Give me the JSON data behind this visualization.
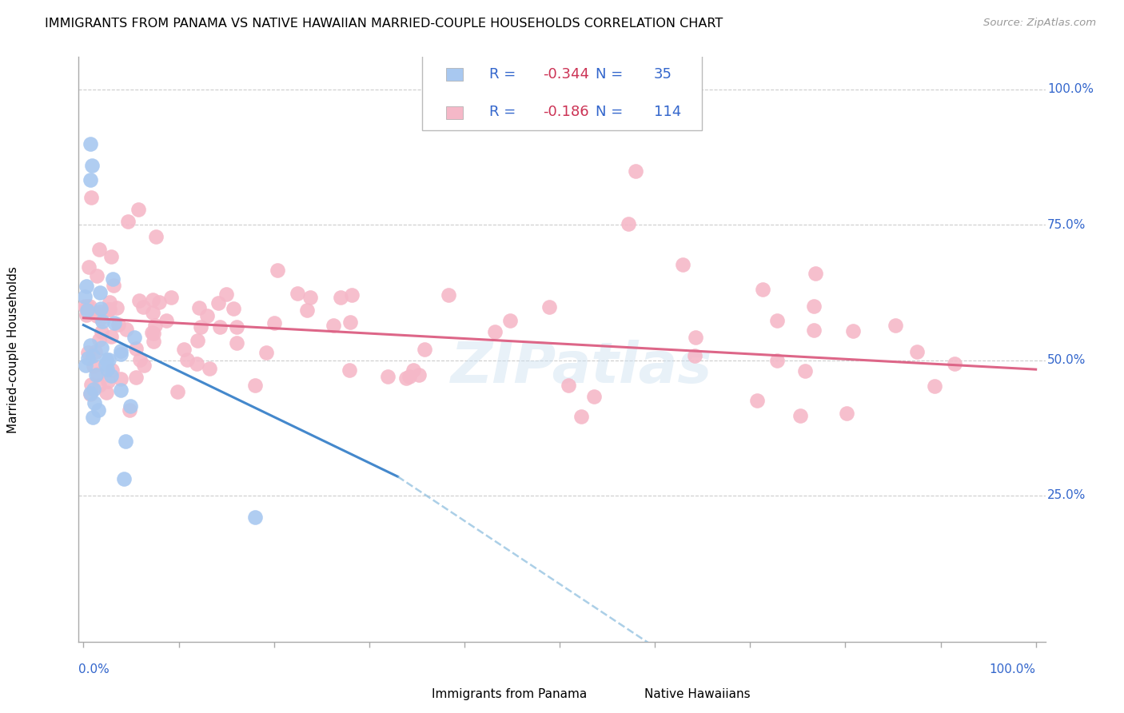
{
  "title": "IMMIGRANTS FROM PANAMA VS NATIVE HAWAIIAN MARRIED-COUPLE HOUSEHOLDS CORRELATION CHART",
  "source": "Source: ZipAtlas.com",
  "ylabel": "Married-couple Households",
  "blue_color": "#a8c8f0",
  "pink_color": "#f5b8c8",
  "blue_line_color": "#4488cc",
  "pink_line_color": "#dd6688",
  "blue_line_dash_color": "#88bbdd",
  "watermark": "ZIPatlas",
  "legend_blue_r": "R = -0.344",
  "legend_blue_n": "N =  35",
  "legend_pink_r": "R =  -0.186",
  "legend_pink_n": "N = 114",
  "text_blue": "#3366cc",
  "text_pink_r": "#cc3355",
  "figsize": [
    14.06,
    8.92
  ],
  "dpi": 100
}
